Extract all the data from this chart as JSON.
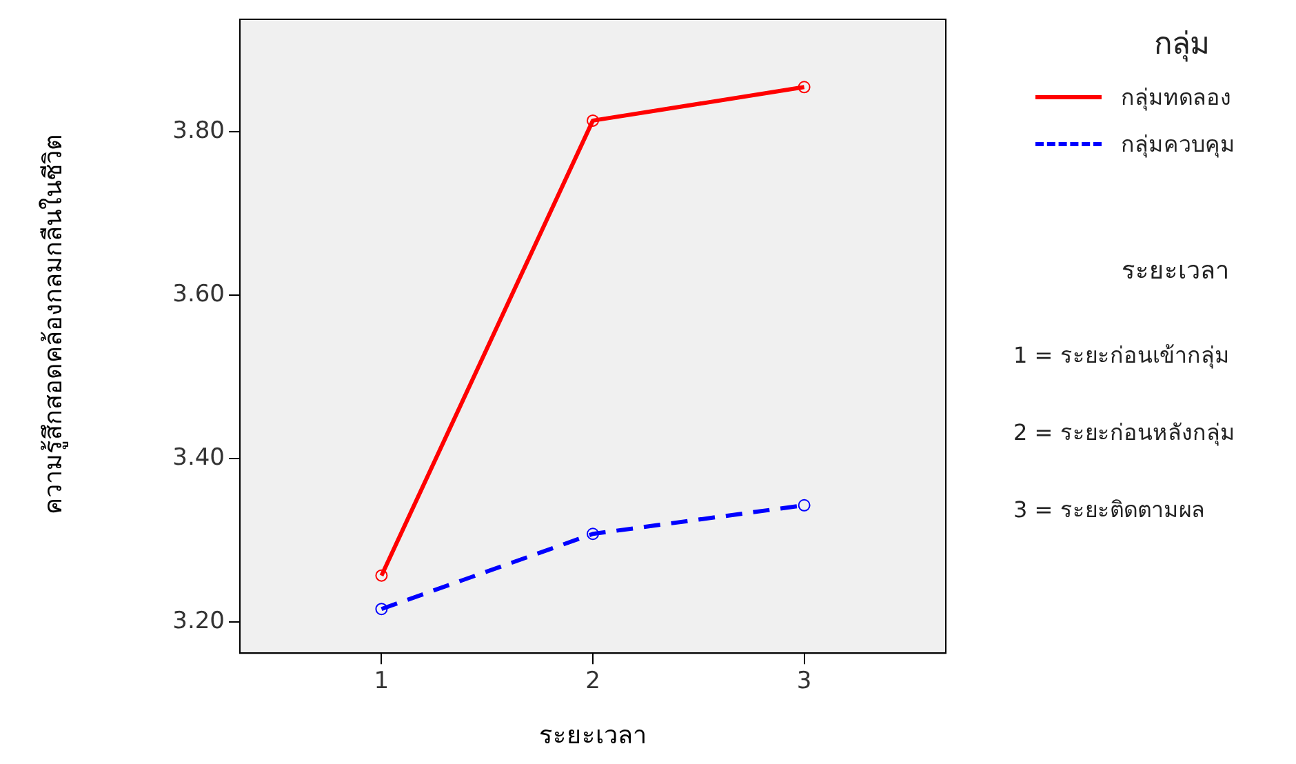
{
  "chart_data": {
    "type": "line",
    "xlabel": "ระยะเวลา",
    "ylabel": "ความรู้สึกสอดคล้องกลมกลืนในชีวิต",
    "legend_title": "กลุ่ม",
    "x": [
      1,
      2,
      3
    ],
    "xlim": [
      0.33,
      3.67
    ],
    "xticks": [
      1,
      2,
      3
    ],
    "ylim": [
      3.162,
      3.938
    ],
    "yticks": [
      {
        "value": 3.2,
        "label": "3.20"
      },
      {
        "value": 3.4,
        "label": "3.40"
      },
      {
        "value": 3.6,
        "label": "3.60"
      },
      {
        "value": 3.8,
        "label": "3.80"
      }
    ],
    "series": [
      {
        "name": "กลุ่มทดลอง",
        "color": "#ff0000",
        "values": [
          3.257,
          3.814,
          3.855
        ],
        "line_style": "solid"
      },
      {
        "name": "กลุ่มควบคุม",
        "color": "#0000ff",
        "values": [
          3.216,
          3.308,
          3.343
        ],
        "line_style": "dashed"
      }
    ],
    "marker": "circle",
    "grid": false,
    "legend": "right",
    "annotations": [
      "ระยะเวลา",
      "1 = ระยะก่อนเข้ากลุ่ม",
      "2 = ระยะก่อนหลังกลุ่ม",
      "3 = ระยะติดตามผล"
    ]
  }
}
